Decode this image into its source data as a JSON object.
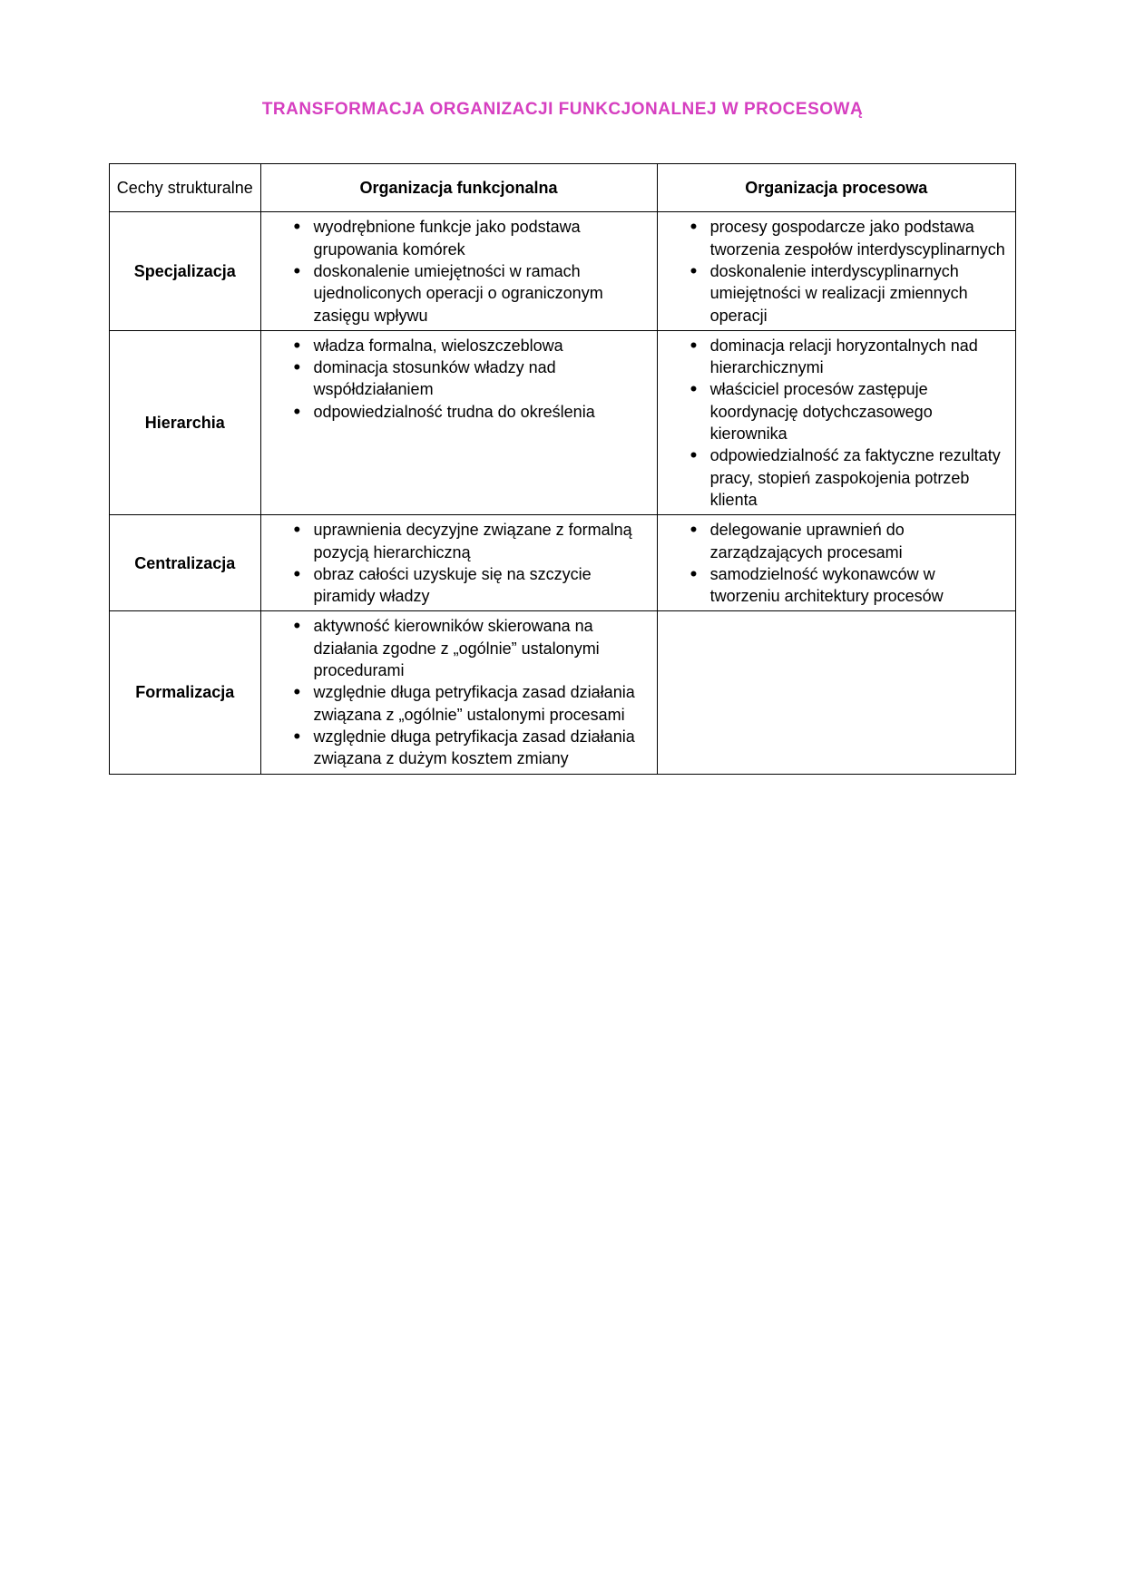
{
  "title_text": "TRANSFORMACJA ORGANIZACJI FUNKCJONALNEJ W PROCESOWĄ",
  "title_color": "#d63fc0",
  "text_color": "#000000",
  "border_color": "#000000",
  "background_color": "#ffffff",
  "table": {
    "columns": [
      "Cechy strukturalne",
      "Organizacja funkcjonalna",
      "Organizacja procesowa"
    ],
    "rows": [
      {
        "label": "Specjalizacja",
        "funkcjonalna": [
          "wyodrębnione funkcje jako podstawa grupowania komórek",
          "doskonalenie umiejętności w ramach ujednoliconych operacji o ograniczonym zasięgu wpływu"
        ],
        "procesowa": [
          "procesy gospodarcze jako podstawa tworzenia zespołów interdyscyplinarnych",
          "doskonalenie interdyscyplinarnych umiejętności w realizacji zmiennych operacji"
        ]
      },
      {
        "label": "Hierarchia",
        "funkcjonalna": [
          "władza formalna, wieloszczeblowa",
          "dominacja stosunków władzy nad współdziałaniem",
          "odpowiedzialność trudna do określenia"
        ],
        "procesowa": [
          "dominacja relacji horyzontalnych nad hierarchicznymi",
          "właściciel procesów zastępuje koordynację dotychczasowego kierownika",
          "odpowiedzialność za faktyczne rezultaty pracy, stopień zaspokojenia potrzeb klienta"
        ]
      },
      {
        "label": "Centralizacja",
        "funkcjonalna": [
          "uprawnienia decyzyjne związane z formalną pozycją hierarchiczną",
          "obraz całości uzyskuje się na szczycie piramidy władzy"
        ],
        "procesowa": [
          "delegowanie uprawnień do zarządzających procesami",
          "samodzielność wykonawców w tworzeniu architektury procesów"
        ]
      },
      {
        "label": "Formalizacja",
        "funkcjonalna": [
          "aktywność kierowników skierowana na działania zgodne z „ogólnie” ustalonymi procedurami",
          "względnie długa petryfikacja zasad działania związana z „ogólnie” ustalonymi procesami",
          "względnie długa petryfikacja zasad działania związana z dużym kosztem zmiany"
        ],
        "procesowa": []
      }
    ]
  }
}
